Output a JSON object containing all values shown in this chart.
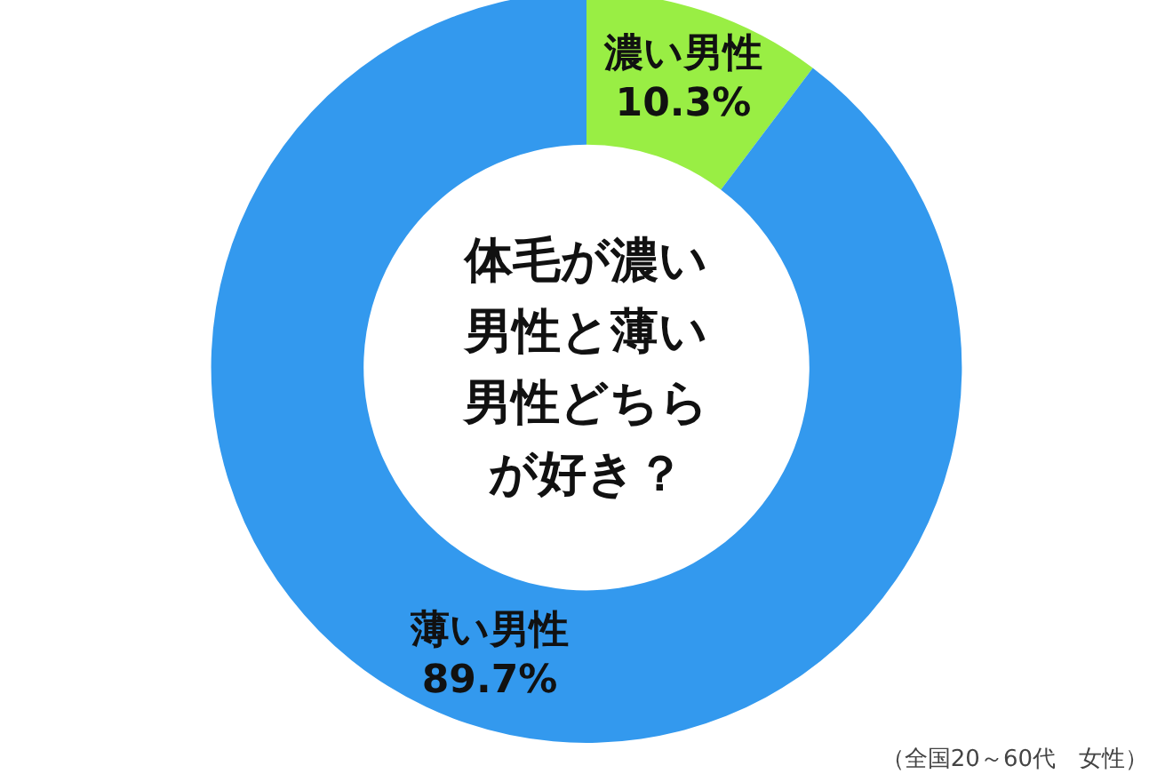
{
  "chart_data": {
    "type": "donut",
    "title": "体毛が濃い男性と薄い男性どちらが好き？",
    "categories": [
      "濃い男性",
      "薄い男性"
    ],
    "values": [
      10.3,
      89.7
    ],
    "colors": [
      "#99ee44",
      "#3399ee"
    ],
    "value_labels": [
      "10.3%",
      "89.7%"
    ],
    "annotations": [
      "（全国20～60代　女性）"
    ],
    "legend": false
  }
}
